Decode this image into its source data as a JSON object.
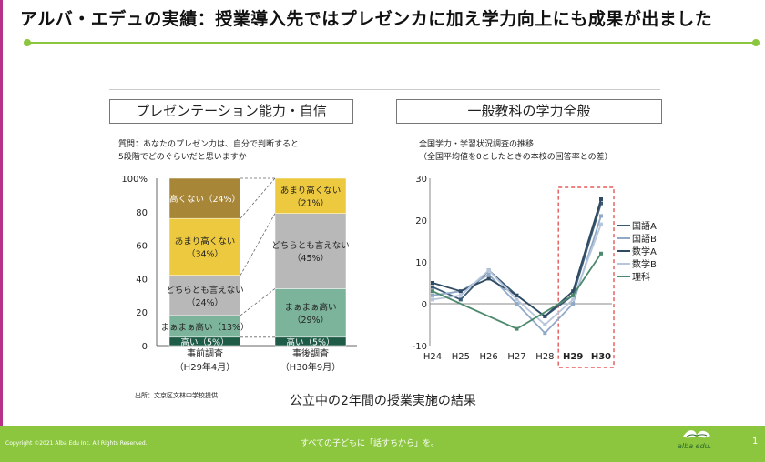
{
  "title": "アルバ・エデュの実績：授業導入先ではプレゼンカに加え学力向上にも成果が出ました",
  "sections": {
    "left_title": "プレゼンテーション能力・自信",
    "right_title": "一般教科の学力全般"
  },
  "left_note": [
    "質問：あなたのプレゼン力は、自分で判断すると",
    "5段階でどのぐらいだと思いますか"
  ],
  "right_note": [
    "全国学力・学習状況調査の推移",
    "（全国平均値を0としたときの本校の回答率との差）"
  ],
  "source_note": "出所：文京区文林中学校提供",
  "caption": "公立中の2年間の授業実施の結果",
  "footer": {
    "copyright": "Copyright ©2021 Alba Edu Inc. All Rights Reserved.",
    "slogan": "すべての子どもに「話すちから」を。",
    "logo_text": "alba edu.",
    "page": "1"
  },
  "colors": {
    "accent_green": "#8cc63f",
    "stack": [
      "#1e5c48",
      "#7cb39b",
      "#b8b8b8",
      "#ecc93e",
      "#a88637"
    ],
    "lines": [
      "#3b5a74",
      "#8fa9c6",
      "#2f4a63",
      "#b8c6dd",
      "#4d8a6d"
    ]
  },
  "chart_data": [
    {
      "type": "bar",
      "stacked": true,
      "ylabels": [
        "100%",
        "80",
        "60",
        "40",
        "20",
        "0"
      ],
      "ylim": [
        0,
        100
      ],
      "categories": [
        "事前調査",
        "事後調査"
      ],
      "category_sub": [
        "（H29年4月）",
        "（H30年9月）"
      ],
      "series": [
        {
          "name": "高い",
          "values": [
            5,
            5
          ],
          "labels": [
            "高い（5%）",
            "高い（5%）"
          ]
        },
        {
          "name": "まぁまぁ高い",
          "values": [
            13,
            29
          ],
          "labels": [
            "まぁまぁ高い（13%）",
            "まぁまぁ高い\n（29%）"
          ]
        },
        {
          "name": "どちらとも言えない",
          "values": [
            24,
            45
          ],
          "labels": [
            "どちらとも言えない\n（24%）",
            "どちらとも言えない\n（45%）"
          ]
        },
        {
          "name": "あまり高くない",
          "values": [
            34,
            21
          ],
          "labels": [
            "あまり高くない\n（34%）",
            "あまり高くない\n（21%）"
          ]
        },
        {
          "name": "高くない",
          "values": [
            24,
            0
          ],
          "labels": [
            "高くない（24%）",
            ""
          ]
        }
      ]
    },
    {
      "type": "line",
      "x": [
        "H24",
        "H25",
        "H26",
        "H27",
        "H28",
        "H29",
        "H30"
      ],
      "highlight_x": [
        "H29",
        "H30"
      ],
      "ylim": [
        -10,
        30
      ],
      "yticks": [
        -10,
        0,
        10,
        20,
        30
      ],
      "series": [
        {
          "name": "国語A",
          "values": [
            4,
            1,
            8,
            2,
            -3,
            2,
            24
          ]
        },
        {
          "name": "国語B",
          "values": [
            2,
            3,
            7,
            0,
            -7,
            0,
            21
          ]
        },
        {
          "name": "数学A",
          "values": [
            5,
            3,
            6,
            2,
            -3,
            3,
            25
          ]
        },
        {
          "name": "数学B",
          "values": [
            1,
            2,
            8,
            1,
            -5,
            1,
            19
          ]
        },
        {
          "name": "理科",
          "values": [
            3,
            null,
            null,
            -6,
            null,
            2,
            12
          ]
        }
      ]
    }
  ]
}
